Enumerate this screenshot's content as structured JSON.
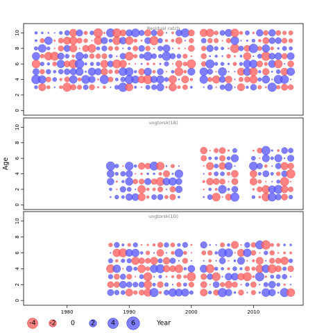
{
  "chart_data": {
    "type": "scatter",
    "chart_kind": "bubble",
    "ylabel": "Age",
    "xlim": [
      1973,
      2018
    ],
    "ylim": [
      -0.6,
      11.2
    ],
    "x_ticks": [
      1980,
      1990,
      2000,
      2010
    ],
    "y_ticks": [
      0,
      2,
      4,
      6,
      8,
      10
    ],
    "grid": false,
    "colors": {
      "positive": "#5a5aff",
      "negative": "#ff6060",
      "edge_positive": "#2222cc",
      "edge_negative": "#d22a2a"
    },
    "legend": {
      "placement": "bottom-left",
      "entries": [
        {
          "label": "-4",
          "value": -4
        },
        {
          "label": "-2",
          "value": -2
        },
        {
          "label": "0",
          "value": 0
        },
        {
          "label": "2",
          "value": 2
        },
        {
          "label": "4",
          "value": 4
        },
        {
          "label": "6",
          "value": 6
        }
      ],
      "x_label": "Year"
    },
    "panels": [
      {
        "title": "Residual catch",
        "ages": [
          3,
          4,
          5,
          6,
          7,
          8,
          9,
          10
        ],
        "years": [
          1975,
          1976,
          1977,
          1978,
          1979,
          1980,
          1981,
          1982,
          1983,
          1984,
          1985,
          1986,
          1987,
          1988,
          1989,
          1990,
          1991,
          1992,
          1993,
          1994,
          1995,
          1996,
          1997,
          1998,
          1999,
          2000,
          2002,
          2003,
          2004,
          2005,
          2006,
          2007,
          2008,
          2009,
          2010,
          2011,
          2012,
          2013,
          2014,
          2015,
          2016
        ]
      },
      {
        "title": "ungtorsk(1B)",
        "ages": [
          1,
          2,
          3,
          4,
          5
        ],
        "years": [
          1987,
          1988,
          1989,
          1990,
          1991,
          1992,
          1993,
          1994,
          1995,
          1996,
          1997,
          1998
        ],
        "extra_ages": [
          6,
          7
        ],
        "extra_years": [
          2002,
          2003,
          2004,
          2005,
          2006,
          2007,
          2010,
          2011,
          2012,
          2013,
          2014,
          2015,
          2016
        ]
      },
      {
        "title": "ungtorsk(1D)",
        "ages": [
          1,
          2,
          3,
          4,
          5,
          6,
          7
        ],
        "years": [
          1987,
          1988,
          1989,
          1990,
          1991,
          1992,
          1993,
          1994,
          1995,
          1996,
          1997,
          1998,
          1999,
          2000,
          2002,
          2003,
          2004,
          2005,
          2006,
          2007,
          2008,
          2009,
          2010,
          2011,
          2012,
          2013,
          2014,
          2015,
          2016
        ]
      }
    ]
  }
}
